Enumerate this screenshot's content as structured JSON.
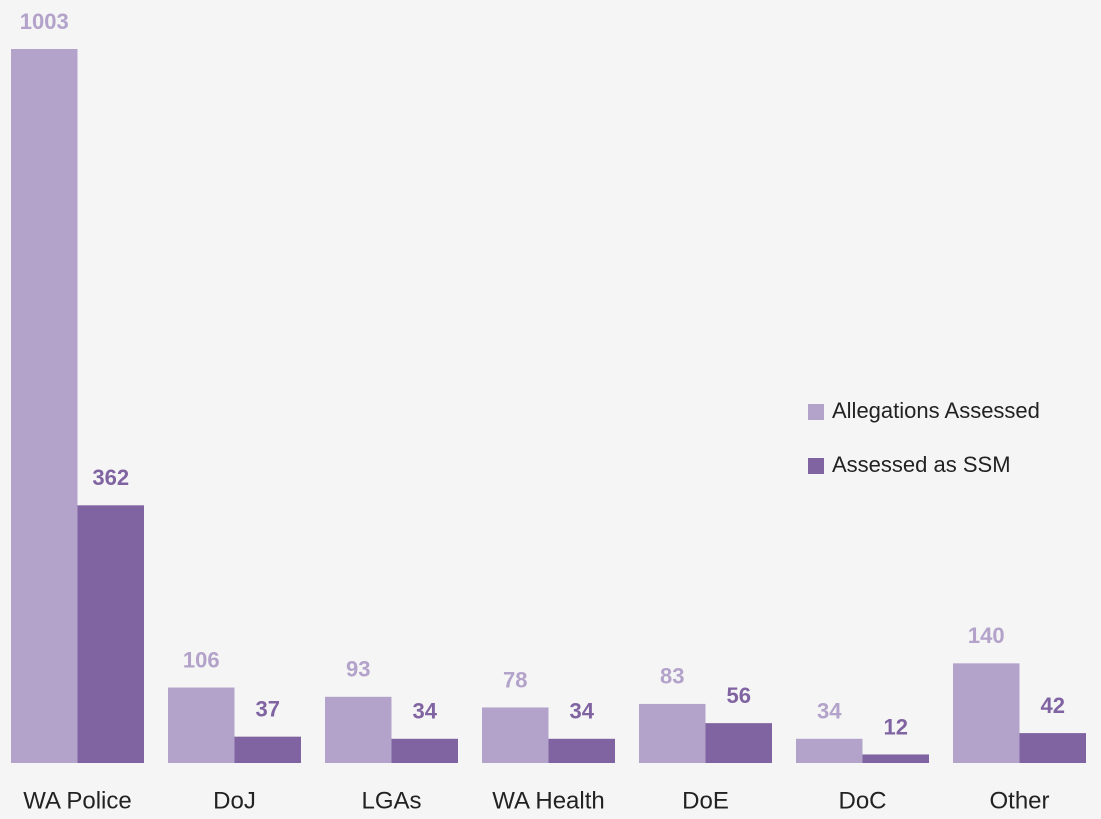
{
  "chart_data": {
    "type": "bar",
    "categories": [
      "WA Police",
      "DoJ",
      "LGAs",
      "WA Health",
      "DoE",
      "DoC",
      "Other"
    ],
    "series": [
      {
        "name": "Allegations Assessed",
        "color": "#b3a2c9",
        "values": [
          1003,
          106,
          93,
          78,
          83,
          34,
          140
        ]
      },
      {
        "name": "Assessed as SSM",
        "color": "#8064a2",
        "values": [
          362,
          37,
          34,
          34,
          56,
          12,
          42
        ]
      }
    ],
    "legend": "right"
  }
}
